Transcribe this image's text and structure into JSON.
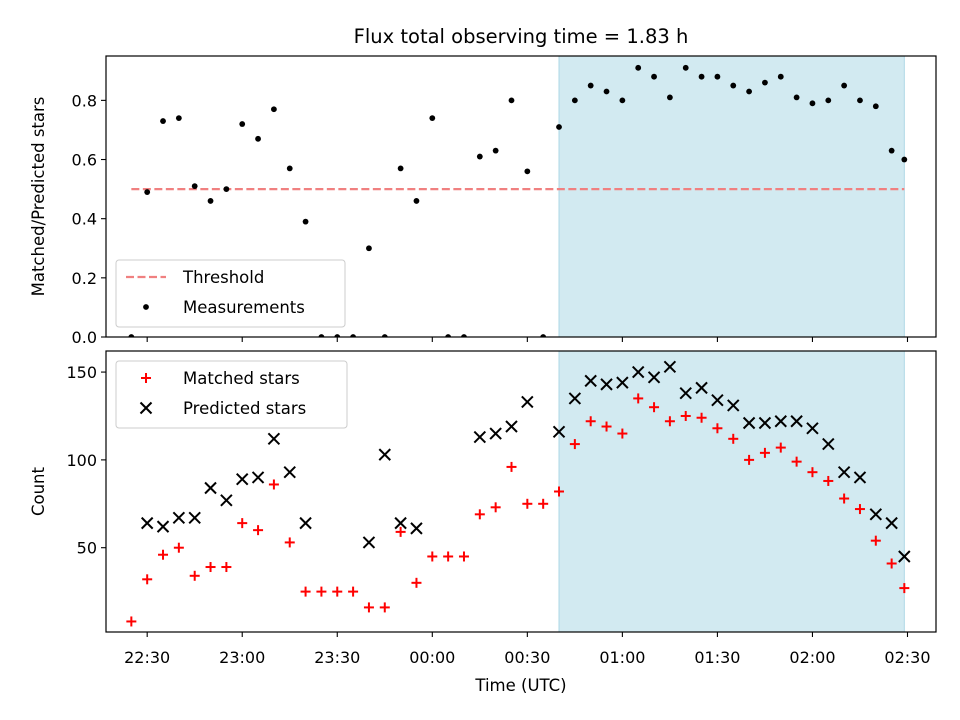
{
  "title": "Flux total observing time = 1.83 h",
  "colors": {
    "threshold": "#f08080",
    "measurement": "#000000",
    "matched": "#ff0000",
    "predicted": "#000000",
    "shade": "#add8e6"
  },
  "chart_data": [
    {
      "type": "scatter",
      "panel": "top",
      "ylabel": "Matched/Predicted stars",
      "xlabel": "",
      "xlim": [
        "22:17",
        "02:39"
      ],
      "ylim": [
        0,
        0.95
      ],
      "yticks": [
        0.0,
        0.2,
        0.4,
        0.6,
        0.8
      ],
      "ytick_labels": [
        "0.0",
        "0.2",
        "0.4",
        "0.6",
        "0.8"
      ],
      "grid": false,
      "legend_position": "lower-left",
      "shaded_region": [
        "00:40",
        "02:29"
      ],
      "threshold": {
        "name": "Threshold",
        "y": 0.5,
        "x": [
          "22:25",
          "02:29"
        ]
      },
      "series": [
        {
          "name": "Measurements",
          "marker": "dot",
          "x": [
            "22:25",
            "22:30",
            "22:35",
            "22:40",
            "22:45",
            "22:50",
            "22:55",
            "23:00",
            "23:05",
            "23:10",
            "23:15",
            "23:20",
            "23:25",
            "23:30",
            "23:35",
            "23:40",
            "23:45",
            "23:50",
            "23:55",
            "00:00",
            "00:05",
            "00:10",
            "00:15",
            "00:20",
            "00:25",
            "00:30",
            "00:35",
            "00:40",
            "00:45",
            "00:50",
            "00:55",
            "01:00",
            "01:05",
            "01:10",
            "01:15",
            "01:20",
            "01:25",
            "01:30",
            "01:35",
            "01:40",
            "01:45",
            "01:50",
            "01:55",
            "02:00",
            "02:05",
            "02:10",
            "02:15",
            "02:20",
            "02:25",
            "02:29"
          ],
          "y": [
            0.0,
            0.49,
            0.73,
            0.74,
            0.51,
            0.46,
            0.5,
            0.72,
            0.67,
            0.77,
            0.57,
            0.39,
            0.0,
            0.0,
            0.0,
            0.3,
            0.0,
            0.57,
            0.46,
            0.74,
            0.0,
            0.0,
            0.61,
            0.63,
            0.8,
            0.56,
            0.0,
            0.71,
            0.8,
            0.85,
            0.83,
            0.8,
            0.91,
            0.88,
            0.81,
            0.91,
            0.88,
            0.88,
            0.85,
            0.83,
            0.86,
            0.88,
            0.81,
            0.79,
            0.8,
            0.85,
            0.8,
            0.78,
            0.63,
            0.6
          ]
        }
      ]
    },
    {
      "type": "scatter",
      "panel": "bottom",
      "ylabel": "Count",
      "xlabel": "Time (UTC)",
      "xlim": [
        "22:17",
        "02:39"
      ],
      "ylim": [
        2,
        162
      ],
      "yticks": [
        50,
        100,
        150
      ],
      "ytick_labels": [
        "50",
        "100",
        "150"
      ],
      "xticks": [
        "22:30",
        "23:00",
        "23:30",
        "00:00",
        "00:30",
        "01:00",
        "01:30",
        "02:00",
        "02:30"
      ],
      "xtick_labels": [
        "22:30",
        "23:00",
        "23:30",
        "00:00",
        "00:30",
        "01:00",
        "01:30",
        "02:00",
        "02:30"
      ],
      "grid": false,
      "legend_position": "upper-left",
      "shaded_region": [
        "00:40",
        "02:29"
      ],
      "series": [
        {
          "name": "Matched stars",
          "marker": "plus",
          "x": [
            "22:25",
            "22:30",
            "22:35",
            "22:40",
            "22:45",
            "22:50",
            "22:55",
            "23:00",
            "23:05",
            "23:10",
            "23:15",
            "23:20",
            "23:25",
            "23:30",
            "23:35",
            "23:40",
            "23:45",
            "23:50",
            "23:55",
            "00:00",
            "00:05",
            "00:10",
            "00:15",
            "00:20",
            "00:25",
            "00:30",
            "00:35",
            "00:40",
            "00:45",
            "00:50",
            "00:55",
            "01:00",
            "01:05",
            "01:10",
            "01:15",
            "01:20",
            "01:25",
            "01:30",
            "01:35",
            "01:40",
            "01:45",
            "01:50",
            "01:55",
            "02:00",
            "02:05",
            "02:10",
            "02:15",
            "02:20",
            "02:25",
            "02:29"
          ],
          "y": [
            8,
            32,
            46,
            50,
            34,
            39,
            39,
            64,
            60,
            86,
            53,
            25,
            25,
            25,
            25,
            16,
            16,
            59,
            30,
            45,
            45,
            45,
            69,
            73,
            96,
            75,
            75,
            82,
            109,
            122,
            119,
            115,
            135,
            130,
            122,
            125,
            124,
            118,
            112,
            100,
            104,
            107,
            99,
            93,
            88,
            78,
            72,
            54,
            41,
            27
          ]
        },
        {
          "name": "Predicted stars",
          "marker": "x",
          "x": [
            "22:30",
            "22:35",
            "22:40",
            "22:45",
            "22:50",
            "22:55",
            "23:00",
            "23:05",
            "23:10",
            "23:15",
            "23:20",
            "23:40",
            "23:45",
            "23:50",
            "23:55",
            "00:15",
            "00:20",
            "00:25",
            "00:30",
            "00:40",
            "00:45",
            "00:50",
            "00:55",
            "01:00",
            "01:05",
            "01:10",
            "01:15",
            "01:20",
            "01:25",
            "01:30",
            "01:35",
            "01:40",
            "01:45",
            "01:50",
            "01:55",
            "02:00",
            "02:05",
            "02:10",
            "02:15",
            "02:20",
            "02:25",
            "02:29"
          ],
          "y": [
            64,
            62,
            67,
            67,
            84,
            77,
            89,
            90,
            112,
            93,
            64,
            53,
            103,
            64,
            61,
            113,
            115,
            119,
            133,
            116,
            135,
            145,
            143,
            144,
            150,
            147,
            153,
            138,
            141,
            134,
            131,
            121,
            121,
            122,
            122,
            118,
            109,
            93,
            90,
            69,
            64,
            45
          ]
        }
      ]
    }
  ]
}
